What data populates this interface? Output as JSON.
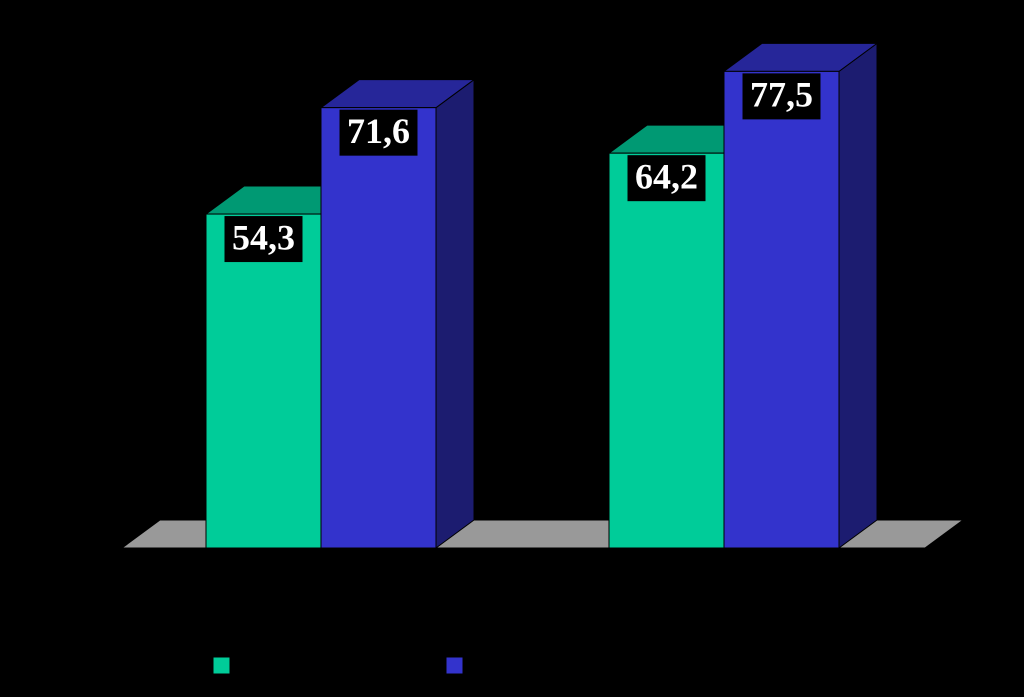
{
  "chart_data": {
    "type": "bar3d",
    "categories": [
      null,
      null
    ],
    "series": [
      {
        "color": "#00cc99",
        "values": [
          54.3,
          64.2
        ],
        "value_labels": [
          "54,3",
          "64,2"
        ]
      },
      {
        "color": "#3333cc",
        "values": [
          71.6,
          77.5
        ],
        "value_labels": [
          "71,6",
          "77,5"
        ]
      }
    ]
  }
}
